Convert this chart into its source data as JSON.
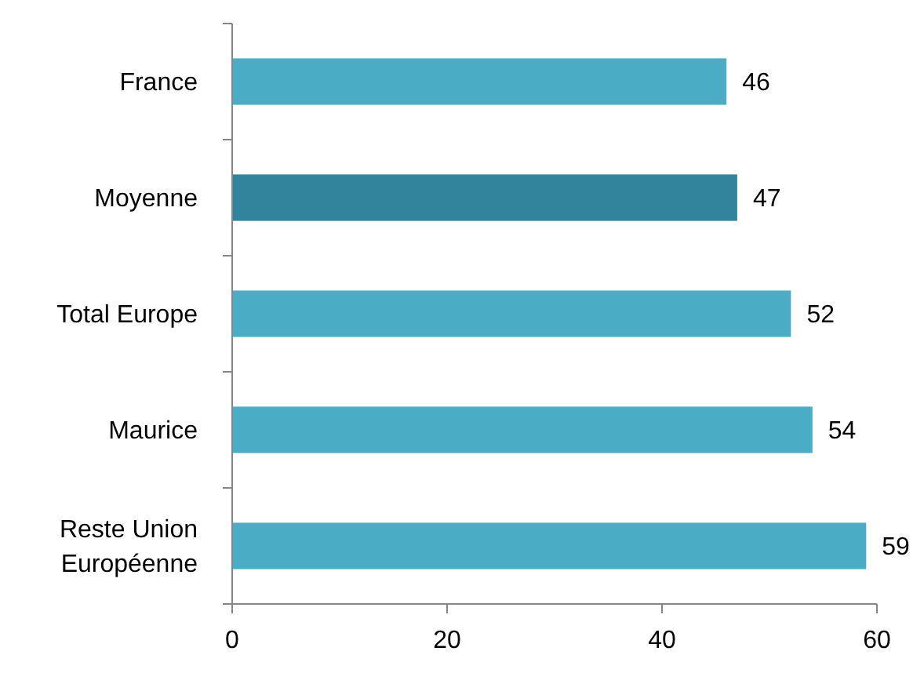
{
  "chart_data": {
    "type": "bar",
    "orientation": "horizontal",
    "categories": [
      "France",
      "Moyenne",
      "Total Europe",
      "Maurice",
      "Reste Union Européenne"
    ],
    "values": [
      46,
      47,
      52,
      54,
      59
    ],
    "colors": [
      "#4bacc6",
      "#31849b",
      "#4bacc6",
      "#4bacc6",
      "#4bacc6"
    ],
    "xlim": [
      0,
      60
    ],
    "xticks": [
      0,
      20,
      40,
      60
    ],
    "data_labels": true,
    "grid": false
  }
}
